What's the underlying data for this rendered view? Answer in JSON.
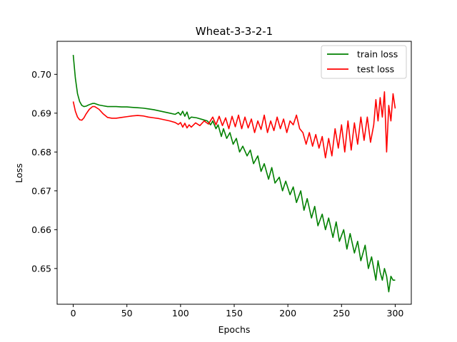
{
  "chart_data": {
    "type": "line",
    "title": "Wheat-3-3-2-1",
    "xlabel": "Epochs",
    "ylabel": "Loss",
    "xlim": [
      -15,
      315
    ],
    "ylim": [
      0.6408,
      0.7085
    ],
    "xticks": [
      0,
      50,
      100,
      150,
      200,
      250,
      300
    ],
    "yticks": [
      0.65,
      0.66,
      0.67,
      0.68,
      0.69,
      0.7
    ],
    "legend_position": "top-right",
    "grid": false,
    "series": [
      {
        "name": "train loss",
        "color": "#008000",
        "points": [
          [
            0,
            0.705
          ],
          [
            2,
            0.699
          ],
          [
            4,
            0.695
          ],
          [
            6,
            0.693
          ],
          [
            8,
            0.692
          ],
          [
            10,
            0.6917
          ],
          [
            12,
            0.6918
          ],
          [
            15,
            0.6922
          ],
          [
            18,
            0.6925
          ],
          [
            20,
            0.6925
          ],
          [
            24,
            0.6921
          ],
          [
            28,
            0.6919
          ],
          [
            32,
            0.6917
          ],
          [
            36,
            0.6917
          ],
          [
            40,
            0.6917
          ],
          [
            45,
            0.6916
          ],
          [
            50,
            0.6916
          ],
          [
            55,
            0.6915
          ],
          [
            60,
            0.6914
          ],
          [
            65,
            0.6913
          ],
          [
            70,
            0.6911
          ],
          [
            75,
            0.6909
          ],
          [
            80,
            0.6906
          ],
          [
            85,
            0.6903
          ],
          [
            90,
            0.69
          ],
          [
            95,
            0.6897
          ],
          [
            98,
            0.6902
          ],
          [
            100,
            0.6895
          ],
          [
            102,
            0.6905
          ],
          [
            104,
            0.6892
          ],
          [
            106,
            0.6903
          ],
          [
            108,
            0.6885
          ],
          [
            110,
            0.689
          ],
          [
            115,
            0.6888
          ],
          [
            120,
            0.6884
          ],
          [
            125,
            0.688
          ],
          [
            128,
            0.687
          ],
          [
            130,
            0.688
          ],
          [
            133,
            0.686
          ],
          [
            135,
            0.687
          ],
          [
            138,
            0.684
          ],
          [
            140,
            0.686
          ],
          [
            143,
            0.6835
          ],
          [
            146,
            0.685
          ],
          [
            149,
            0.682
          ],
          [
            152,
            0.6835
          ],
          [
            155,
            0.68
          ],
          [
            158,
            0.6815
          ],
          [
            162,
            0.679
          ],
          [
            165,
            0.6805
          ],
          [
            168,
            0.677
          ],
          [
            172,
            0.679
          ],
          [
            175,
            0.675
          ],
          [
            178,
            0.677
          ],
          [
            182,
            0.673
          ],
          [
            185,
            0.676
          ],
          [
            188,
            0.672
          ],
          [
            192,
            0.6735
          ],
          [
            195,
            0.67
          ],
          [
            198,
            0.6725
          ],
          [
            202,
            0.669
          ],
          [
            205,
            0.671
          ],
          [
            208,
            0.667
          ],
          [
            212,
            0.67
          ],
          [
            215,
            0.665
          ],
          [
            218,
            0.668
          ],
          [
            222,
            0.663
          ],
          [
            225,
            0.666
          ],
          [
            228,
            0.661
          ],
          [
            232,
            0.664
          ],
          [
            235,
            0.66
          ],
          [
            238,
            0.663
          ],
          [
            242,
            0.658
          ],
          [
            245,
            0.662
          ],
          [
            248,
            0.657
          ],
          [
            252,
            0.66
          ],
          [
            255,
            0.655
          ],
          [
            258,
            0.659
          ],
          [
            262,
            0.654
          ],
          [
            265,
            0.657
          ],
          [
            268,
            0.652
          ],
          [
            272,
            0.656
          ],
          [
            275,
            0.65
          ],
          [
            278,
            0.653
          ],
          [
            282,
            0.647
          ],
          [
            284,
            0.652
          ],
          [
            286,
            0.649
          ],
          [
            288,
            0.647
          ],
          [
            290,
            0.65
          ],
          [
            292,
            0.648
          ],
          [
            294,
            0.644
          ],
          [
            296,
            0.648
          ],
          [
            298,
            0.647
          ],
          [
            300,
            0.647
          ]
        ]
      },
      {
        "name": "test loss",
        "color": "#ff0000",
        "points": [
          [
            0,
            0.693
          ],
          [
            2,
            0.6905
          ],
          [
            4,
            0.689
          ],
          [
            6,
            0.6883
          ],
          [
            8,
            0.6882
          ],
          [
            10,
            0.6888
          ],
          [
            12,
            0.6898
          ],
          [
            15,
            0.691
          ],
          [
            18,
            0.6917
          ],
          [
            20,
            0.6917
          ],
          [
            24,
            0.691
          ],
          [
            28,
            0.6898
          ],
          [
            32,
            0.6889
          ],
          [
            36,
            0.6887
          ],
          [
            40,
            0.6887
          ],
          [
            45,
            0.6889
          ],
          [
            50,
            0.6891
          ],
          [
            55,
            0.6893
          ],
          [
            60,
            0.6894
          ],
          [
            65,
            0.6893
          ],
          [
            70,
            0.689
          ],
          [
            75,
            0.6888
          ],
          [
            80,
            0.6886
          ],
          [
            85,
            0.6883
          ],
          [
            90,
            0.688
          ],
          [
            95,
            0.6876
          ],
          [
            98,
            0.6871
          ],
          [
            100,
            0.6876
          ],
          [
            102,
            0.6864
          ],
          [
            104,
            0.6874
          ],
          [
            106,
            0.6862
          ],
          [
            108,
            0.687
          ],
          [
            110,
            0.6864
          ],
          [
            114,
            0.6875
          ],
          [
            118,
            0.6868
          ],
          [
            122,
            0.688
          ],
          [
            126,
            0.6872
          ],
          [
            130,
            0.689
          ],
          [
            133,
            0.687
          ],
          [
            136,
            0.6892
          ],
          [
            139,
            0.6868
          ],
          [
            142,
            0.6888
          ],
          [
            145,
            0.686
          ],
          [
            148,
            0.6892
          ],
          [
            151,
            0.6865
          ],
          [
            154,
            0.6895
          ],
          [
            157,
            0.686
          ],
          [
            160,
            0.689
          ],
          [
            163,
            0.6862
          ],
          [
            166,
            0.6885
          ],
          [
            169,
            0.685
          ],
          [
            172,
            0.688
          ],
          [
            175,
            0.6858
          ],
          [
            178,
            0.6895
          ],
          [
            181,
            0.685
          ],
          [
            184,
            0.688
          ],
          [
            187,
            0.6855
          ],
          [
            190,
            0.689
          ],
          [
            193,
            0.686
          ],
          [
            196,
            0.6885
          ],
          [
            199,
            0.685
          ],
          [
            202,
            0.688
          ],
          [
            205,
            0.687
          ],
          [
            208,
            0.6895
          ],
          [
            211,
            0.686
          ],
          [
            214,
            0.685
          ],
          [
            217,
            0.682
          ],
          [
            220,
            0.685
          ],
          [
            223,
            0.6815
          ],
          [
            226,
            0.6845
          ],
          [
            229,
            0.681
          ],
          [
            232,
            0.684
          ],
          [
            235,
            0.6785
          ],
          [
            238,
            0.6835
          ],
          [
            241,
            0.679
          ],
          [
            244,
            0.686
          ],
          [
            247,
            0.681
          ],
          [
            250,
            0.687
          ],
          [
            253,
            0.68
          ],
          [
            256,
            0.688
          ],
          [
            259,
            0.6805
          ],
          [
            262,
            0.6875
          ],
          [
            265,
            0.682
          ],
          [
            268,
            0.689
          ],
          [
            271,
            0.683
          ],
          [
            274,
            0.689
          ],
          [
            277,
            0.6825
          ],
          [
            280,
            0.687
          ],
          [
            282,
            0.6935
          ],
          [
            284,
            0.688
          ],
          [
            286,
            0.694
          ],
          [
            288,
            0.689
          ],
          [
            290,
            0.6955
          ],
          [
            292,
            0.68
          ],
          [
            294,
            0.692
          ],
          [
            296,
            0.688
          ],
          [
            298,
            0.695
          ],
          [
            300,
            0.6912
          ]
        ]
      }
    ]
  }
}
